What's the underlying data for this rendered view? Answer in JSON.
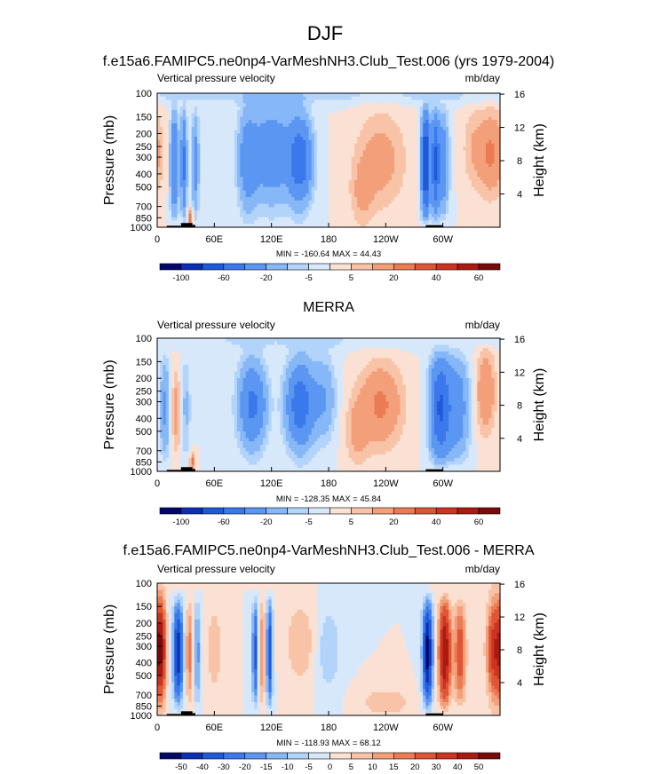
{
  "figure": {
    "title": "DJF"
  },
  "panels": [
    {
      "title": "f.e15a6.FAMIPC5.ne0np4-VarMeshNH3.Club_Test.006 (yrs 1979-2004)",
      "left_label": "Vertical pressure velocity",
      "right_label": "mb/day",
      "stats": "MIN = -160.64  MAX =  44.43",
      "field": "model"
    },
    {
      "title": "MERRA",
      "left_label": "Vertical pressure velocity",
      "right_label": "mb/day",
      "stats": "MIN = -128.35  MAX = 45.84",
      "field": "obs"
    },
    {
      "title": "f.e15a6.FAMIPC5.ne0np4-VarMeshNH3.Club_Test.006 - MERRA",
      "left_label": "Vertical pressure velocity",
      "right_label": "mb/day",
      "stats": "MIN = -118.93  MAX = 68.12",
      "field": "diff"
    }
  ],
  "axes": {
    "ylabel_left": "Pressure (mb)",
    "ylabel_right": "Height (km)",
    "pressure_ticks": [
      100,
      150,
      200,
      250,
      300,
      400,
      500,
      700,
      850,
      1000
    ],
    "height_ticks": [
      4,
      8,
      12,
      16
    ],
    "xticks": [
      "0",
      "60E",
      "120E",
      "180",
      "120W",
      "60W"
    ],
    "xtick_lon": [
      0,
      60,
      120,
      180,
      240,
      300
    ],
    "xlim": [
      0,
      360
    ],
    "ylim_mb": [
      100,
      1000
    ],
    "y_scale": "log"
  },
  "colorbar_main": {
    "labels": [
      "-100",
      "-60",
      "-20",
      "-5",
      "5",
      "20",
      "40",
      "60"
    ],
    "label_slots": [
      1,
      3,
      5,
      7,
      9,
      11,
      13,
      15
    ],
    "colors": [
      "#03066b",
      "#0c2fb3",
      "#1e5ad8",
      "#3a78eb",
      "#5b97f2",
      "#86b7f7",
      "#b2d3fa",
      "#d8e8fb",
      "#fbe1d3",
      "#f8c3a7",
      "#f3a07a",
      "#ea7b53",
      "#df5636",
      "#cc3320",
      "#ab1a12",
      "#7a0b0b"
    ]
  },
  "colorbar_diff": {
    "labels": [
      "-50",
      "-40",
      "-30",
      "-20",
      "-15",
      "-10",
      "-5",
      "0",
      "5",
      "10",
      "15",
      "20",
      "30",
      "40",
      "50"
    ],
    "label_slots": [
      1,
      2,
      3,
      4,
      5,
      6,
      7,
      8,
      9,
      10,
      11,
      12,
      13,
      14,
      15
    ],
    "colors": [
      "#03066b",
      "#0c2fb3",
      "#1e5ad8",
      "#3a78eb",
      "#5b97f2",
      "#86b7f7",
      "#b2d3fa",
      "#d8e8fb",
      "#fbe1d3",
      "#f8c3a7",
      "#f3a07a",
      "#ea7b53",
      "#df5636",
      "#cc3320",
      "#ab1a12",
      "#7a0b0b"
    ]
  },
  "chart_data": [
    {
      "type": "heatmap",
      "title": "f.e15a6.FAMIPC5.ne0np4-VarMeshNH3.Club_Test.006 (yrs 1979-2004)",
      "xlabel": "",
      "ylabel": "Pressure (mb)",
      "xlim": [
        0,
        360
      ],
      "ylim": [
        1000,
        100
      ],
      "units": "mb/day",
      "min": -160.64,
      "max": 44.43,
      "features": [
        {
          "lon_range": [
            10,
            45
          ],
          "sign": "negative",
          "note": "deep ascent columns over 0-45E"
        },
        {
          "lon_range": [
            90,
            180
          ],
          "sign": "negative",
          "peak_mb_day": -100
        },
        {
          "lon_range": [
            195,
            270
          ],
          "sign": "positive",
          "peak_mb_day": 20
        },
        {
          "lon_range": [
            275,
            300
          ],
          "sign": "negative",
          "peak_mb_day": -160
        },
        {
          "lon_range": [
            320,
            360
          ],
          "sign": "positive",
          "peak_mb_day": 40
        }
      ]
    },
    {
      "type": "heatmap",
      "title": "MERRA",
      "xlabel": "",
      "ylabel": "Pressure (mb)",
      "xlim": [
        0,
        360
      ],
      "ylim": [
        1000,
        100
      ],
      "units": "mb/day",
      "min": -128.35,
      "max": 45.84,
      "features": [
        {
          "lon_range": [
            10,
            35
          ],
          "sign": "positive",
          "peak_mb_day": 20
        },
        {
          "lon_range": [
            65,
            195
          ],
          "sign": "negative",
          "peak_mb_day": -100
        },
        {
          "lon_range": [
            200,
            290
          ],
          "sign": "positive",
          "peak_mb_day": 40
        },
        {
          "lon_range": [
            285,
            340
          ],
          "sign": "negative",
          "peak_mb_day": -100
        },
        {
          "lon_range": [
            340,
            360
          ],
          "sign": "positive",
          "peak_mb_day": 20
        }
      ]
    },
    {
      "type": "heatmap",
      "title": "f.e15a6.FAMIPC5.ne0np4-VarMeshNH3.Club_Test.006 - MERRA",
      "xlabel": "",
      "ylabel": "Pressure (mb)",
      "xlim": [
        0,
        360
      ],
      "ylim": [
        1000,
        100
      ],
      "units": "mb/day",
      "min": -118.93,
      "max": 68.12,
      "features": [
        {
          "lon_range": [
            0,
            15
          ],
          "sign": "positive",
          "peak_mb_day": 40
        },
        {
          "lon_range": [
            20,
            35
          ],
          "sign": "negative",
          "peak_mb_day": -50
        },
        {
          "lon_range": [
            100,
            125
          ],
          "sign": "negative",
          "peak_mb_day": -40
        },
        {
          "lon_range": [
            280,
            300
          ],
          "sign": "negative",
          "peak_mb_day": -50
        },
        {
          "lon_range": [
            300,
            330
          ],
          "sign": "positive",
          "peak_mb_day": 50
        },
        {
          "lon_range": [
            340,
            360
          ],
          "sign": "positive",
          "peak_mb_day": 40
        }
      ]
    }
  ]
}
